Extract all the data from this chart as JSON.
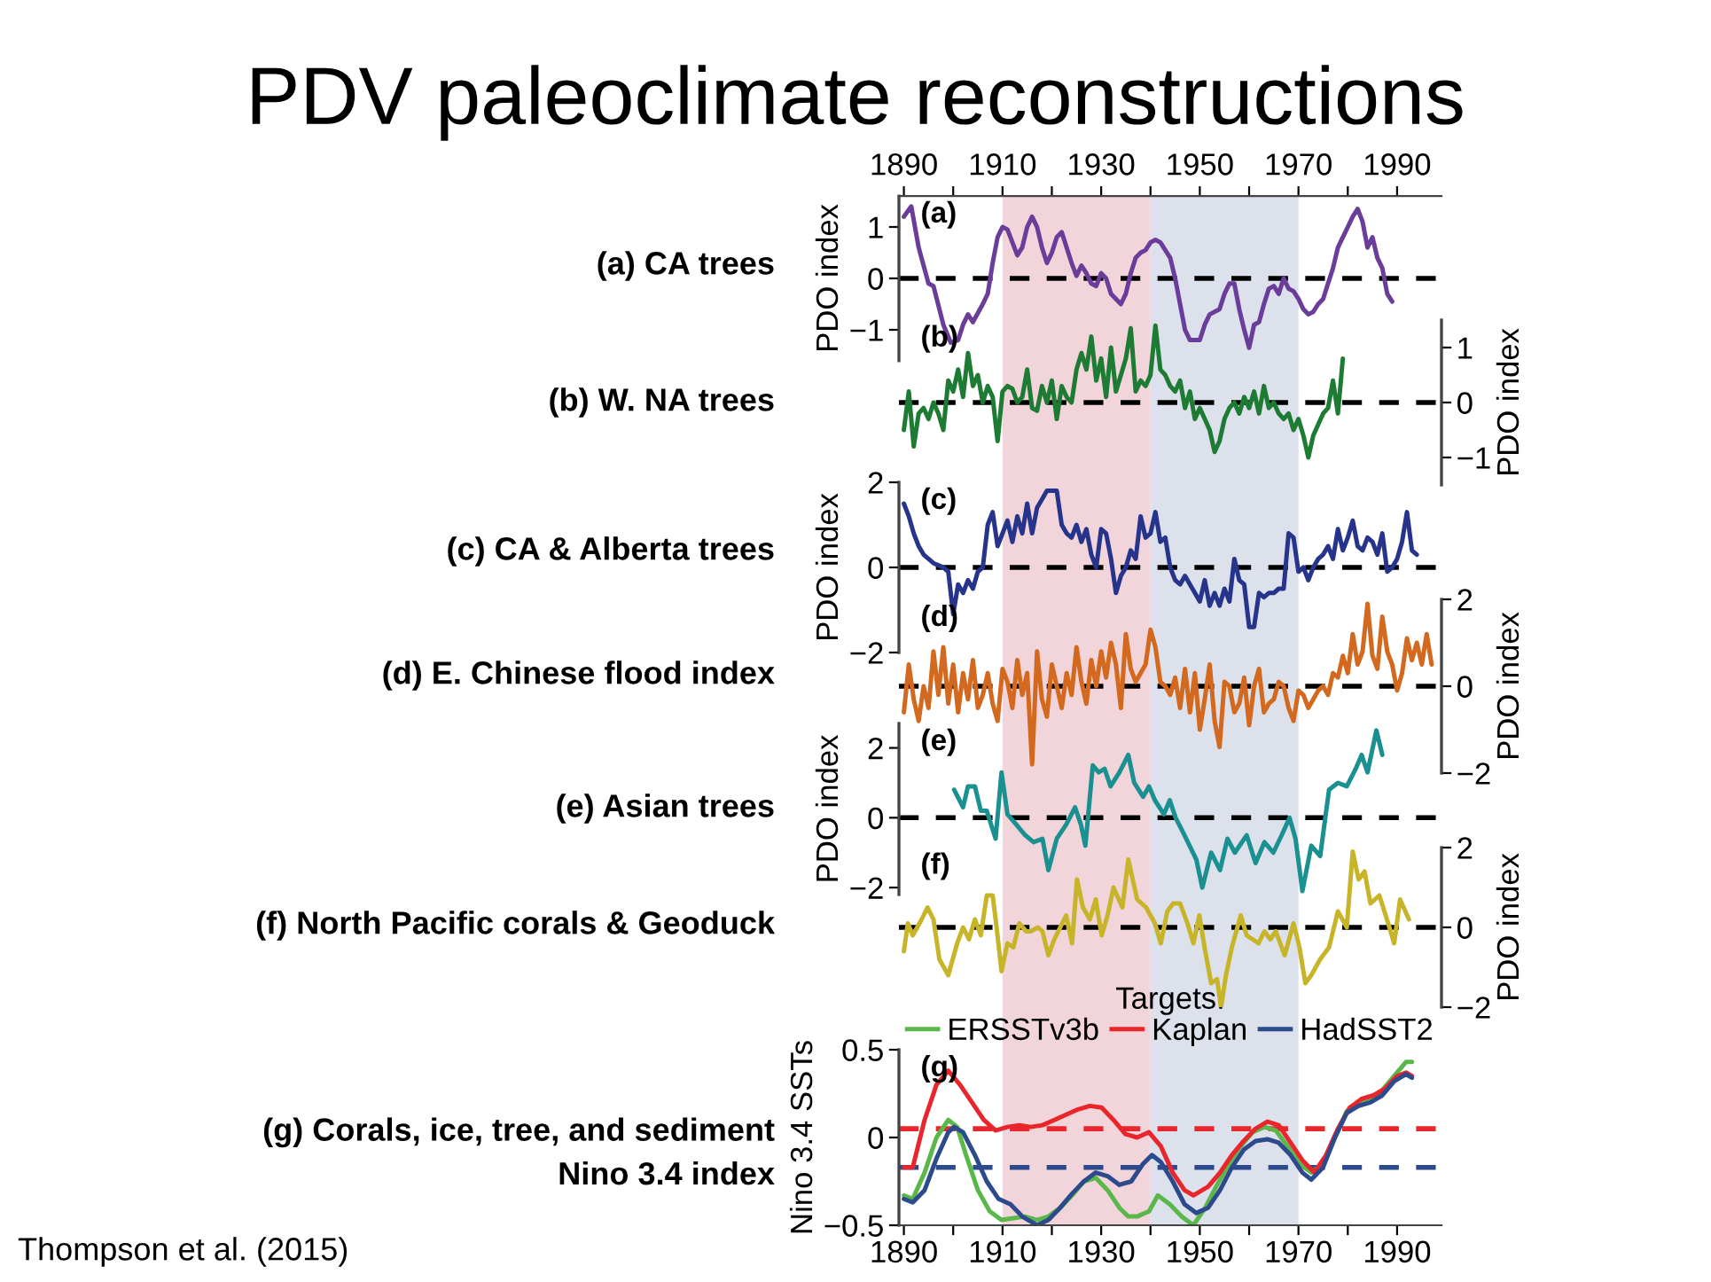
{
  "chart_data": [
    {
      "type": "line",
      "title": "PDV paleoclimate reconstructions",
      "ylabel": "PDO index",
      "annotations": [
        "(a)",
        "(a) CA trees"
      ],
      "xlim": [
        1889,
        1999
      ],
      "x2lim": [
        1889,
        1999
      ],
      "x2ticks": [
        1890,
        {
          "value": 1900,
          "label": null
        },
        1910,
        {
          "value": 1920,
          "label": null
        },
        1930,
        {
          "value": 1940,
          "label": null
        },
        1950,
        {
          "value": 1960,
          "label": null
        },
        1970,
        {
          "value": 1980,
          "label": null
        },
        1990
      ],
      "ylim": [
        -1.6,
        1.6
      ],
      "yticks": [
        -1,
        0,
        1
      ],
      "ref_lines": [
        {
          "axis": "y",
          "value": 0,
          "color": "#000000",
          "line_style": "dashed"
        }
      ],
      "series": [
        {
          "color": "#6a3d9a",
          "x": [
            1890,
            1891.5,
            1893,
            1895,
            1896,
            1898,
            1899.5,
            1901,
            1902,
            1903,
            1904,
            1906,
            1907,
            1908,
            1909,
            1910,
            1911,
            1912,
            1913,
            1914,
            1915,
            1916,
            1917,
            1918,
            1919,
            1920,
            1921,
            1922,
            1923,
            1924,
            1925,
            1926,
            1927,
            1928,
            1929,
            1930,
            1931,
            1932,
            1933,
            1934,
            1935,
            1936,
            1937,
            1938,
            1939,
            1940,
            1941,
            1942,
            1943,
            1944,
            1945,
            1946,
            1947,
            1948,
            1950,
            1951,
            1952,
            1954,
            1955,
            1956,
            1957,
            1958,
            1959,
            1960,
            1961,
            1962,
            1963,
            1964,
            1965,
            1966,
            1967,
            1968,
            1969,
            1970,
            1971,
            1972,
            1973,
            1974,
            1975,
            1976,
            1977,
            1978,
            1979,
            1980,
            1981,
            1982,
            1983,
            1984,
            1985,
            1986,
            1987,
            1988,
            1989
          ],
          "values": [
            1.2,
            1.4,
            0.6,
            -0.1,
            -0.15,
            -0.9,
            -1.25,
            -1.2,
            -0.9,
            -0.7,
            -0.85,
            -0.5,
            -0.3,
            0.3,
            0.8,
            1.0,
            0.95,
            0.7,
            0.45,
            0.6,
            1.0,
            1.2,
            1.0,
            0.6,
            0.3,
            0.5,
            0.8,
            0.9,
            0.6,
            0.3,
            0.05,
            0.25,
            0.1,
            -0.1,
            -0.15,
            0.1,
            0.0,
            -0.3,
            -0.4,
            -0.5,
            -0.3,
            0.1,
            0.4,
            0.5,
            0.55,
            0.7,
            0.75,
            0.7,
            0.55,
            0.4,
            0.0,
            -0.5,
            -1.0,
            -1.2,
            -1.2,
            -0.9,
            -0.7,
            -0.6,
            -0.3,
            -0.1,
            -0.1,
            -0.6,
            -1.0,
            -1.35,
            -0.9,
            -0.85,
            -0.5,
            -0.2,
            -0.15,
            -0.3,
            0.0,
            -0.2,
            -0.25,
            -0.4,
            -0.6,
            -0.7,
            -0.65,
            -0.5,
            -0.4,
            -0.1,
            0.2,
            0.6,
            0.8,
            1.0,
            1.2,
            1.35,
            1.1,
            0.6,
            0.8,
            0.4,
            0.2,
            -0.3,
            -0.45
          ]
        }
      ]
    },
    {
      "type": "line",
      "y2label": "PDO index",
      "annotations": [
        "(b)",
        "(b) W. NA trees"
      ],
      "tick_labels": "y",
      "xlim": [
        1889,
        1999
      ],
      "y2lim": [
        -1.5,
        1.5
      ],
      "y2ticks": [
        -1,
        0,
        1
      ],
      "ref_lines": [
        {
          "axis": "y2",
          "value": 0,
          "color": "#000000",
          "line_style": "dashed"
        }
      ],
      "series": [
        {
          "color": "#1e7b33",
          "axis": "y2",
          "x": [
            1890,
            1891,
            1892,
            1893,
            1894,
            1895,
            1896,
            1897,
            1898,
            1899,
            1900,
            1901,
            1902,
            1903,
            1904,
            1905,
            1906,
            1907,
            1908,
            1909,
            1910,
            1911,
            1912,
            1913,
            1914,
            1915,
            1916,
            1917,
            1918,
            1919,
            1920,
            1921,
            1922,
            1923,
            1924,
            1925,
            1926,
            1927,
            1928,
            1929,
            1930,
            1931,
            1932,
            1933,
            1934,
            1935,
            1936,
            1937,
            1938,
            1939,
            1940,
            1941,
            1942,
            1943,
            1944,
            1945,
            1946,
            1947,
            1948,
            1949,
            1950,
            1951,
            1952,
            1953,
            1954,
            1955,
            1956,
            1957,
            1958,
            1959,
            1960,
            1961,
            1962,
            1963,
            1964,
            1965,
            1966,
            1967,
            1968,
            1969,
            1970,
            1971,
            1972,
            1973,
            1974,
            1975,
            1976,
            1977,
            1978,
            1979
          ],
          "values": [
            -0.5,
            0.2,
            -0.8,
            -0.2,
            -0.1,
            -0.3,
            0.0,
            -0.2,
            -0.5,
            0.4,
            0.2,
            0.6,
            0.1,
            0.9,
            0.3,
            0.5,
            0.0,
            0.3,
            0.1,
            -0.7,
            0.2,
            0.3,
            0.25,
            0.0,
            0.1,
            0.6,
            -0.1,
            -0.15,
            0.3,
            0.0,
            0.4,
            -0.3,
            0.3,
            0.1,
            0.0,
            0.6,
            0.9,
            0.6,
            1.2,
            0.4,
            0.8,
            0.1,
            1.0,
            0.2,
            0.5,
            0.8,
            1.35,
            0.2,
            0.4,
            0.3,
            0.5,
            1.4,
            0.6,
            0.5,
            0.3,
            0.2,
            0.4,
            -0.1,
            0.2,
            -0.3,
            -0.1,
            -0.3,
            -0.5,
            -0.9,
            -0.7,
            -0.3,
            -0.1,
            0.0,
            -0.2,
            0.1,
            -0.1,
            0.2,
            -0.2,
            0.3,
            -0.1,
            0.0,
            -0.2,
            -0.3,
            -0.2,
            -0.5,
            -0.3,
            -0.6,
            -1.0,
            -0.6,
            -0.4,
            -0.2,
            -0.1,
            0.4,
            -0.2,
            0.8
          ]
        }
      ]
    },
    {
      "type": "line",
      "ylabel": "PDO index",
      "annotations": [
        "(c)",
        "(c) CA & Alberta trees"
      ],
      "tick_labels": "y",
      "xlim": [
        1889,
        1999
      ],
      "ylim": [
        -2,
        2
      ],
      "yticks": [
        -2,
        0,
        2
      ],
      "ref_lines": [
        {
          "axis": "y",
          "value": 0,
          "color": "#000000",
          "line_style": "dashed"
        }
      ],
      "series": [
        {
          "color": "#27348b",
          "x": [
            1890,
            1891,
            1892,
            1893,
            1894,
            1895,
            1896,
            1897,
            1898,
            1899,
            1900,
            1901,
            1902,
            1903,
            1904,
            1905,
            1906,
            1907,
            1908,
            1909,
            1910,
            1911,
            1912,
            1913,
            1914,
            1915,
            1916,
            1917,
            1918,
            1919,
            1920,
            1921,
            1922,
            1923,
            1924,
            1925,
            1926,
            1927,
            1928,
            1929,
            1930,
            1931,
            1932,
            1933,
            1934,
            1935,
            1936,
            1937,
            1938,
            1939,
            1940,
            1941,
            1942,
            1943,
            1944,
            1945,
            1946,
            1947,
            1948,
            1949,
            1950,
            1951,
            1952,
            1953,
            1954,
            1955,
            1956,
            1957,
            1958,
            1959,
            1960,
            1961,
            1962,
            1963,
            1964,
            1965,
            1966,
            1967,
            1968,
            1969,
            1970,
            1971,
            1972,
            1973,
            1974,
            1975,
            1976,
            1977,
            1978,
            1979,
            1980,
            1981,
            1982,
            1983,
            1984,
            1985,
            1986,
            1987,
            1988,
            1989,
            1990,
            1991,
            1992,
            1993,
            1994
          ],
          "values": [
            1.5,
            1.2,
            0.8,
            0.5,
            0.3,
            0.2,
            0.1,
            0.05,
            0.0,
            -0.1,
            -1.1,
            -0.4,
            -0.6,
            -0.3,
            -0.5,
            -0.1,
            0.0,
            1.0,
            1.3,
            0.5,
            0.8,
            1.1,
            0.6,
            1.2,
            0.8,
            1.5,
            0.8,
            1.4,
            1.6,
            1.8,
            1.8,
            1.8,
            1.0,
            0.8,
            0.7,
            1.0,
            0.6,
            0.9,
            0.3,
            0.0,
            0.9,
            0.8,
            0.2,
            -0.6,
            -0.2,
            0.0,
            0.4,
            0.2,
            1.2,
            0.7,
            0.8,
            1.3,
            0.6,
            0.7,
            0.0,
            -0.3,
            -0.4,
            -0.2,
            -0.4,
            -0.6,
            -0.8,
            -0.3,
            -0.9,
            -0.6,
            -0.9,
            -0.5,
            -0.8,
            0.2,
            -0.3,
            -0.4,
            -1.4,
            -1.4,
            -0.6,
            -0.7,
            -0.6,
            -0.6,
            -0.5,
            -0.5,
            0.8,
            0.7,
            -0.1,
            0.0,
            -0.3,
            0.0,
            0.2,
            0.3,
            0.5,
            0.2,
            0.9,
            0.4,
            0.7,
            1.1,
            0.5,
            0.4,
            0.7,
            0.6,
            0.3,
            0.8,
            -0.1,
            0.0,
            0.2,
            0.6,
            1.3,
            0.4,
            0.3
          ]
        }
      ]
    },
    {
      "type": "line",
      "y2label": "PDO index",
      "annotations": [
        "(d)",
        "(d) E. Chinese flood index"
      ],
      "tick_labels": "y",
      "xlim": [
        1889,
        1999
      ],
      "y2lim": [
        -2,
        2
      ],
      "y2ticks": [
        -2,
        0,
        2
      ],
      "ref_lines": [
        {
          "axis": "y2",
          "value": 0,
          "color": "#000000",
          "line_style": "dashed"
        }
      ],
      "series": [
        {
          "color": "#d2691e",
          "axis": "y2",
          "x": [
            1890,
            1891,
            1892,
            1893,
            1894,
            1895,
            1896,
            1897,
            1898,
            1899,
            1900,
            1901,
            1902,
            1903,
            1904,
            1905,
            1906,
            1907,
            1908,
            1909,
            1910,
            1911,
            1912,
            1913,
            1914,
            1915,
            1916,
            1917,
            1918,
            1919,
            1920,
            1921,
            1922,
            1923,
            1924,
            1925,
            1926,
            1927,
            1928,
            1929,
            1930,
            1931,
            1932,
            1933,
            1934,
            1935,
            1936,
            1937,
            1938,
            1939,
            1940,
            1941,
            1942,
            1943,
            1944,
            1945,
            1946,
            1947,
            1948,
            1949,
            1950,
            1951,
            1952,
            1953,
            1954,
            1955,
            1956,
            1957,
            1958,
            1959,
            1960,
            1961,
            1962,
            1963,
            1964,
            1965,
            1966,
            1967,
            1968,
            1969,
            1970,
            1971,
            1972,
            1973,
            1974,
            1975,
            1976,
            1977,
            1978,
            1979,
            1980,
            1981,
            1982,
            1983,
            1984,
            1985,
            1986,
            1987,
            1988,
            1989,
            1990,
            1991,
            1992,
            1993,
            1994,
            1995,
            1996,
            1997
          ],
          "values": [
            -0.6,
            0.5,
            -0.3,
            -0.8,
            0.0,
            -0.5,
            0.8,
            -0.2,
            0.9,
            -0.4,
            0.5,
            -0.6,
            0.3,
            -0.3,
            0.6,
            -0.5,
            -0.2,
            0.3,
            -0.4,
            -0.8,
            0.4,
            0.1,
            -0.5,
            0.6,
            -0.2,
            0.3,
            -1.8,
            0.8,
            -0.3,
            -0.7,
            0.5,
            0.0,
            -0.5,
            0.3,
            -0.2,
            0.9,
            0.1,
            -0.4,
            0.6,
            0.0,
            0.8,
            0.2,
            1.0,
            0.5,
            -0.5,
            1.2,
            0.4,
            0.1,
            0.3,
            0.5,
            1.3,
            0.9,
            0.1,
            0.0,
            -0.2,
            0.2,
            -0.5,
            0.4,
            -0.6,
            0.3,
            -1.0,
            -0.3,
            0.5,
            -0.8,
            -1.4,
            0.1,
            0.0,
            -0.6,
            -0.4,
            0.2,
            -0.9,
            0.0,
            0.4,
            -0.6,
            -0.4,
            -0.3,
            0.1,
            0.0,
            -0.5,
            -0.8,
            -0.1,
            -0.2,
            -0.5,
            -0.3,
            -0.1,
            0.0,
            -0.2,
            0.3,
            0.2,
            0.7,
            0.3,
            1.2,
            0.5,
            0.8,
            1.9,
            0.7,
            0.4,
            1.6,
            0.8,
            0.5,
            -0.1,
            0.3,
            1.1,
            0.6,
            1.0,
            0.5,
            1.2,
            0.5
          ]
        }
      ]
    },
    {
      "type": "line",
      "ylabel": "PDO index",
      "annotations": [
        "(e)",
        "(e) Asian trees"
      ],
      "tick_labels": "y",
      "xlim": [
        1889,
        1999
      ],
      "ylim": [
        -2.2,
        2.7
      ],
      "yticks": [
        -2,
        0,
        2
      ],
      "ref_lines": [
        {
          "axis": "y",
          "value": 0,
          "color": "#000000",
          "line_style": "dashed"
        }
      ],
      "series": [
        {
          "color": "#1a9090",
          "x": [
            1900.2,
            1902,
            1903,
            1904.4,
            1905.6,
            1906.8,
            1908.6,
            1909.8,
            1911,
            1912.8,
            1914.6,
            1916.3,
            1918.1,
            1919.3,
            1921,
            1922.9,
            1924.7,
            1925.9,
            1926.8,
            1928.3,
            1929.5,
            1930.7,
            1931.9,
            1933.7,
            1935.5,
            1936.7,
            1938.5,
            1939.7,
            1940.9,
            1942.7,
            1943.9,
            1945.1,
            1946.9,
            1949.3,
            1950.5,
            1952.3,
            1954.1,
            1955.6,
            1957.1,
            1959.5,
            1961.3,
            1963.1,
            1964.9,
            1966.6,
            1968.2,
            1969.4,
            1970.8,
            1972.6,
            1974.4,
            1976.2,
            1978,
            1979.8,
            1981.6,
            1982.8,
            1984,
            1985.8,
            1987
          ],
          "values": [
            0.8,
            0.3,
            0.9,
            0.9,
            0.2,
            0.2,
            -0.6,
            1.3,
            0.1,
            -0.2,
            -0.5,
            -0.7,
            -0.6,
            -1.5,
            -0.6,
            -0.2,
            0.3,
            -0.2,
            -0.8,
            1.5,
            1.3,
            1.4,
            0.9,
            1.3,
            1.8,
            1.0,
            0.6,
            0.9,
            0.5,
            0.1,
            0.5,
            0.0,
            -0.5,
            -1.2,
            -2.0,
            -1.0,
            -1.5,
            -0.6,
            -1.0,
            -0.5,
            -1.3,
            -0.7,
            -1.0,
            -0.5,
            0.0,
            -0.6,
            -2.1,
            -0.8,
            -1.1,
            0.8,
            1.0,
            0.9,
            1.4,
            1.8,
            1.3,
            2.5,
            1.8
          ]
        }
      ]
    },
    {
      "type": "line",
      "y2label": "PDO index",
      "annotations": [
        "(f)",
        "(f) North Pacific corals & Geoduck"
      ],
      "tick_labels": "y",
      "xlim": [
        1889,
        1999
      ],
      "y2lim": [
        -2,
        2
      ],
      "y2ticks": [
        -2,
        0,
        2
      ],
      "ref_lines": [
        {
          "axis": "y2",
          "value": 0,
          "color": "#000000",
          "line_style": "dashed"
        }
      ],
      "series": [
        {
          "color": "#c8b428",
          "axis": "y2",
          "x": [
            1890,
            1890.8,
            1891.8,
            1893.6,
            1894.8,
            1896,
            1897.2,
            1899,
            1900.8,
            1902,
            1903.2,
            1904.4,
            1905.6,
            1906.8,
            1908,
            1908.8,
            1909.8,
            1911,
            1912.2,
            1913.4,
            1914.8,
            1915.7,
            1917.2,
            1918.1,
            1919.3,
            1920.5,
            1921.7,
            1922.9,
            1924.1,
            1925.1,
            1926.3,
            1927.7,
            1928.9,
            1930.1,
            1931.3,
            1932.5,
            1934.3,
            1935.5,
            1937.3,
            1939.1,
            1940.9,
            1942.1,
            1943.4,
            1944.6,
            1946,
            1947.5,
            1948.7,
            1949.9,
            1951.1,
            1952.3,
            1953.5,
            1954.3,
            1955.3,
            1956.5,
            1958.3,
            1959.5,
            1960.7,
            1961.9,
            1963.1,
            1964.3,
            1965.4,
            1967.2,
            1969,
            1970.2,
            1971.4,
            1972.6,
            1974.4,
            1976.2,
            1978,
            1979.8,
            1981,
            1982.2,
            1983.4,
            1984.6,
            1986.4,
            1988.2,
            1989.4,
            1990.6,
            1992.4
          ],
          "values": [
            -0.6,
            0.1,
            -0.2,
            0.2,
            0.5,
            0.2,
            -0.8,
            -1.2,
            -0.4,
            0.0,
            -0.3,
            0.2,
            -0.2,
            0.8,
            0.8,
            0.0,
            -1.1,
            -0.4,
            -0.5,
            0.1,
            -0.1,
            -0.1,
            0.0,
            -0.1,
            -0.7,
            -0.3,
            0.0,
            0.3,
            -0.4,
            1.2,
            0.5,
            0.2,
            0.7,
            -0.2,
            0.3,
            1.0,
            0.5,
            1.7,
            0.7,
            0.5,
            0.1,
            -0.4,
            0.4,
            0.6,
            0.6,
            0.1,
            -0.4,
            0.3,
            -0.6,
            -1.4,
            -1.3,
            -2.0,
            -1.2,
            -0.5,
            0.3,
            -0.2,
            -0.3,
            -0.4,
            -0.1,
            -0.3,
            -0.1,
            -0.7,
            0.1,
            -0.5,
            -1.4,
            -1.2,
            -0.8,
            -0.5,
            0.4,
            0.0,
            1.9,
            1.2,
            1.4,
            0.6,
            0.8,
            0.1,
            -0.4,
            0.7,
            0.2
          ]
        }
      ]
    },
    {
      "type": "line",
      "ylabel": "Nino 3.4 SSTs",
      "annotations": [
        "(g)",
        "(g) Corals, ice, tree, and sediment\nNino 3.4 index",
        "Thompson et al. (2015)"
      ],
      "legend": "top",
      "legend_title": "Targets:",
      "xlim": [
        1889,
        1999
      ],
      "xticks": [
        1890,
        {
          "value": 1900,
          "label": null
        },
        1910,
        {
          "value": 1920,
          "label": null
        },
        1930,
        {
          "value": 1940,
          "label": null
        },
        1950,
        {
          "value": 1960,
          "label": null
        },
        1970,
        {
          "value": 1980,
          "label": null
        },
        1990
      ],
      "ylim": [
        -0.5,
        0.5
      ],
      "yticks": [
        -0.5,
        0,
        0.5
      ],
      "bands": [
        {
          "axis": "x",
          "from": 1910,
          "to": 1940,
          "color": "#f2d5da"
        },
        {
          "axis": "x",
          "from": 1940,
          "to": 1970,
          "color": "#dce1eb"
        }
      ],
      "ref_lines": [
        {
          "axis": "y",
          "value": 0.05,
          "color": "#e8262b",
          "line_style": "dashed"
        },
        {
          "axis": "y",
          "value": -0.17,
          "color": "#2c4a8c",
          "line_style": "dashed"
        }
      ],
      "series": [
        {
          "name": "ERSSTv3b",
          "color": "#5ab74a",
          "x": [
            1890,
            1891.8,
            1894.2,
            1896.6,
            1899,
            1900.8,
            1902.6,
            1905,
            1907.4,
            1909.8,
            1912.2,
            1914.6,
            1917,
            1919.3,
            1921.7,
            1924.1,
            1926.5,
            1928.9,
            1931.3,
            1933.7,
            1935.5,
            1937.3,
            1939.7,
            1941.5,
            1943.9,
            1946.3,
            1948.7,
            1951.1,
            1953.5,
            1955.9,
            1958.3,
            1960.7,
            1963.1,
            1965.4,
            1967.8,
            1970.2,
            1972.6,
            1975,
            1977.4,
            1979.8,
            1982.2,
            1984.6,
            1987,
            1989.4,
            1991.8,
            1993
          ],
          "values": [
            -0.33,
            -0.35,
            -0.2,
            0.0,
            0.1,
            0.06,
            -0.1,
            -0.3,
            -0.42,
            -0.47,
            -0.46,
            -0.45,
            -0.47,
            -0.45,
            -0.4,
            -0.33,
            -0.25,
            -0.23,
            -0.3,
            -0.4,
            -0.45,
            -0.45,
            -0.42,
            -0.33,
            -0.38,
            -0.45,
            -0.5,
            -0.4,
            -0.27,
            -0.15,
            -0.05,
            0.03,
            0.06,
            0.04,
            -0.05,
            -0.15,
            -0.2,
            -0.15,
            0.0,
            0.15,
            0.2,
            0.22,
            0.27,
            0.35,
            0.43,
            0.43
          ]
        },
        {
          "name": "Kaplan",
          "color": "#e8262b",
          "x": [
            1890,
            1891.8,
            1894.2,
            1896.6,
            1899,
            1901.4,
            1903.8,
            1906.2,
            1908.6,
            1911,
            1913.4,
            1915.7,
            1918.1,
            1920.5,
            1922.9,
            1925.3,
            1927.7,
            1930.1,
            1932.5,
            1934.9,
            1937.3,
            1939.7,
            1942.1,
            1944.5,
            1946.9,
            1948.7,
            1951.7,
            1954.1,
            1956.5,
            1958.9,
            1961.3,
            1963.7,
            1966,
            1968.4,
            1970.8,
            1973.2,
            1975.6,
            1978,
            1980.4,
            1982.8,
            1985.2,
            1987.6,
            1990,
            1991.8,
            1993
          ],
          "values": [
            -0.17,
            -0.17,
            0.1,
            0.3,
            0.38,
            0.3,
            0.2,
            0.1,
            0.04,
            0.06,
            0.07,
            0.06,
            0.07,
            0.1,
            0.13,
            0.16,
            0.18,
            0.17,
            0.1,
            0.02,
            0.0,
            0.03,
            -0.05,
            -0.2,
            -0.3,
            -0.33,
            -0.28,
            -0.2,
            -0.1,
            -0.02,
            0.05,
            0.09,
            0.07,
            -0.03,
            -0.13,
            -0.2,
            -0.1,
            0.05,
            0.17,
            0.22,
            0.24,
            0.28,
            0.35,
            0.37,
            0.35
          ]
        },
        {
          "name": "HadSST2",
          "color": "#2c4a8c",
          "x": [
            1890,
            1891.8,
            1894.2,
            1896.6,
            1899,
            1900.2,
            1902,
            1904.4,
            1906.8,
            1909.2,
            1911.6,
            1914,
            1917,
            1919.3,
            1921.7,
            1924.1,
            1926.5,
            1928.9,
            1931.3,
            1933.7,
            1936.1,
            1938.5,
            1940.3,
            1942.1,
            1944.5,
            1946.9,
            1949.3,
            1951.7,
            1954.1,
            1956.5,
            1958.9,
            1961.3,
            1963.7,
            1966,
            1968.4,
            1970.8,
            1972.6,
            1975,
            1977.4,
            1979.8,
            1982.2,
            1984.6,
            1987,
            1989.4,
            1991.8,
            1993
          ],
          "values": [
            -0.35,
            -0.37,
            -0.3,
            -0.12,
            0.03,
            0.06,
            0.03,
            -0.1,
            -0.25,
            -0.35,
            -0.38,
            -0.45,
            -0.5,
            -0.47,
            -0.4,
            -0.32,
            -0.25,
            -0.2,
            -0.22,
            -0.27,
            -0.25,
            -0.15,
            -0.1,
            -0.14,
            -0.25,
            -0.38,
            -0.43,
            -0.4,
            -0.3,
            -0.17,
            -0.07,
            -0.02,
            -0.01,
            -0.03,
            -0.1,
            -0.2,
            -0.24,
            -0.17,
            0.0,
            0.14,
            0.18,
            0.2,
            0.24,
            0.32,
            0.36,
            0.34
          ]
        }
      ]
    }
  ]
}
